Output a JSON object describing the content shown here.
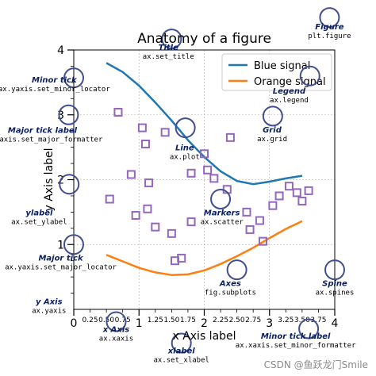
{
  "chart_data": {
    "type": "line",
    "title": "Anatomy of a figure",
    "xlabel": "x Axis label",
    "ylabel": "y Axis label",
    "xlim": [
      0,
      4
    ],
    "ylim": [
      0,
      4
    ],
    "grid": true,
    "legend_position": "top-right",
    "major_ticks_x": [
      "0",
      "1",
      "2",
      "3",
      "4"
    ],
    "minor_ticks_x": [
      "0.25",
      "0.50",
      "0.75",
      "1.25",
      "1.50",
      "1.75",
      "2.25",
      "2.50",
      "2.75",
      "3.25",
      "3.50",
      "3.75"
    ],
    "major_ticks_y": [
      "1",
      "2",
      "3",
      "4"
    ],
    "series": [
      {
        "name": "Blue signal",
        "color": "#1f77b4",
        "x": [
          0.5,
          0.75,
          1.0,
          1.25,
          1.5,
          1.75,
          2.0,
          2.25,
          2.5,
          2.75,
          3.0,
          3.25,
          3.5
        ],
        "y": [
          3.8,
          3.66,
          3.45,
          3.19,
          2.91,
          2.61,
          2.35,
          2.13,
          1.98,
          1.93,
          1.97,
          2.02,
          2.06
        ]
      },
      {
        "name": "Orange signal",
        "color": "#ff7f0e",
        "x": [
          0.5,
          0.75,
          1.0,
          1.25,
          1.5,
          1.75,
          2.0,
          2.25,
          2.5,
          2.75,
          3.0,
          3.25,
          3.5
        ],
        "y": [
          0.84,
          0.74,
          0.64,
          0.57,
          0.53,
          0.54,
          0.6,
          0.7,
          0.82,
          0.95,
          1.1,
          1.24,
          1.36
        ]
      }
    ],
    "markers": {
      "name": "Markers",
      "color": "#9467bd",
      "x": [
        0.68,
        1.1,
        0.55,
        0.95,
        1.13,
        1.25,
        1.5,
        1.8,
        1.55,
        1.65,
        1.4,
        1.05,
        2.0,
        2.05,
        2.15,
        2.35,
        2.65,
        2.7,
        2.85,
        2.9,
        3.05,
        3.15,
        3.3,
        3.42,
        3.5,
        3.6,
        1.8,
        2.4,
        1.15,
        0.88
      ],
      "y": [
        3.04,
        2.55,
        1.7,
        1.45,
        1.55,
        1.27,
        1.17,
        1.35,
        0.75,
        0.79,
        2.73,
        2.8,
        2.4,
        2.15,
        2.02,
        1.85,
        1.5,
        1.23,
        1.37,
        1.05,
        1.6,
        1.75,
        1.9,
        1.8,
        1.67,
        1.83,
        2.1,
        2.65,
        1.95,
        2.08
      ]
    },
    "annotations": [
      {
        "title": "Title",
        "code": "ax.set_title",
        "lx": 1.45,
        "ly": 4.0
      },
      {
        "title": "Figure",
        "code": "plt.figure",
        "lx": 3.92,
        "ly": 4.32
      },
      {
        "title": "Legend",
        "code": "ax.legend",
        "lx": 3.3,
        "ly": 3.33
      },
      {
        "title": "Minor tick",
        "code": "ax.yaxis.set_minor_locator",
        "lx": -0.3,
        "ly": 3.5
      },
      {
        "title": "Major tick label",
        "code": "ax.yaxis.set_major_formatter",
        "lx": -0.48,
        "ly": 2.72
      },
      {
        "title": "Grid",
        "code": "ax.grid",
        "lx": 3.04,
        "ly": 2.73
      },
      {
        "title": "Line",
        "code": "ax.plot",
        "lx": 1.7,
        "ly": 2.45
      },
      {
        "title": "ylabel",
        "code": "ax.set_ylabel",
        "lx": -0.53,
        "ly": 1.45
      },
      {
        "title": "Markers",
        "code": "ax.scatter",
        "lx": 2.27,
        "ly": 1.45
      },
      {
        "title": "Major tick",
        "code": "ax.yaxis.set_major_locator",
        "lx": -0.2,
        "ly": 0.75
      },
      {
        "title": "Axes",
        "code": "fig.subplots",
        "lx": 2.4,
        "ly": 0.36
      },
      {
        "title": "Spine",
        "code": "ax.spines",
        "lx": 4.0,
        "ly": 0.36
      },
      {
        "title": "y Axis",
        "code": "ax.yaxis",
        "lx": -0.38,
        "ly": 0.08
      },
      {
        "title": "x Axis",
        "code": "ax.xaxis",
        "lx": 0.65,
        "ly": -0.35
      },
      {
        "title": "Minor tick label",
        "code": "ax.xaxis.set_minor_formatter",
        "lx": 3.4,
        "ly": -0.45
      },
      {
        "title": "xlabel",
        "code": "ax.set_xlabel",
        "lx": 1.65,
        "ly": -0.68
      }
    ],
    "highlight_circles": [
      {
        "x": 1.5,
        "y": 4.17
      },
      {
        "x": 3.92,
        "y": 4.5
      },
      {
        "x": 3.62,
        "y": 3.6
      },
      {
        "x": 0.0,
        "y": 3.57
      },
      {
        "x": -0.08,
        "y": 3.0
      },
      {
        "x": 3.05,
        "y": 2.98
      },
      {
        "x": 1.71,
        "y": 2.8
      },
      {
        "x": -0.07,
        "y": 1.93
      },
      {
        "x": 2.25,
        "y": 1.7
      },
      {
        "x": 0.0,
        "y": 1.0
      },
      {
        "x": 2.5,
        "y": 0.61
      },
      {
        "x": 4.0,
        "y": 0.61
      },
      {
        "x": 0.65,
        "y": -0.19
      },
      {
        "x": 3.6,
        "y": -0.3
      },
      {
        "x": 1.65,
        "y": -0.52
      }
    ],
    "colors": {
      "annotation_text": "#0b1f5e",
      "circle": "#3f4f8f",
      "grid": "#b0b0b0"
    }
  },
  "watermark": "CSDN @鱼跃龙门Smile"
}
